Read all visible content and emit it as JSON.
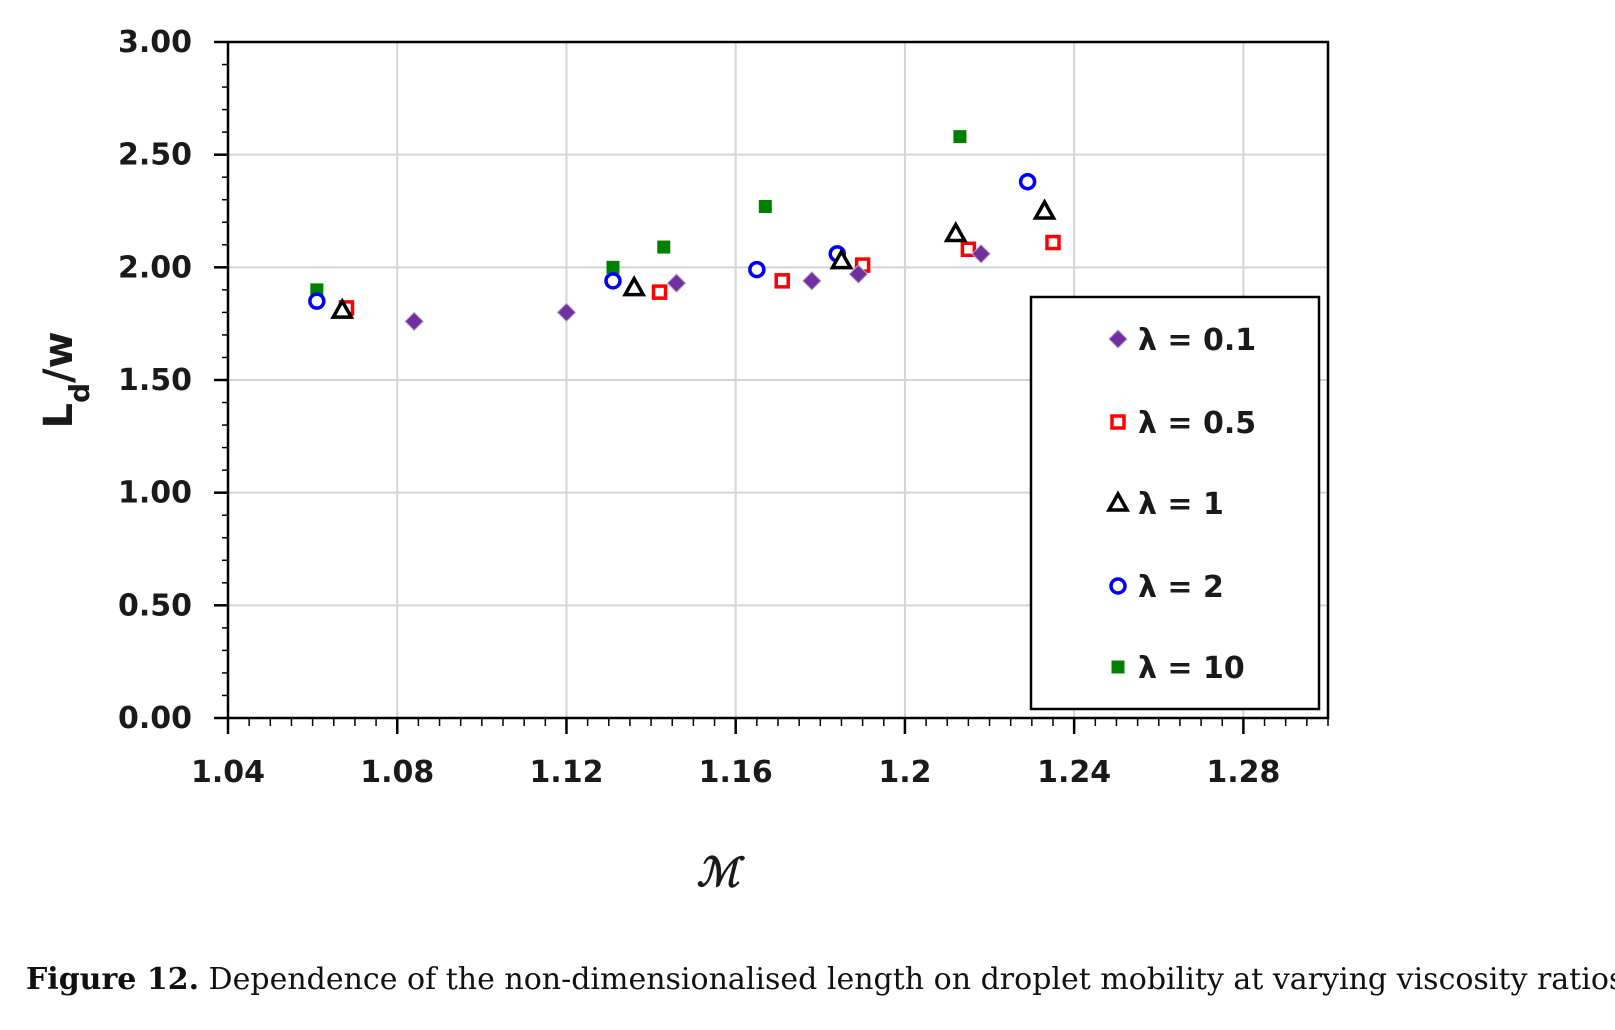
{
  "chart_data": {
    "type": "scatter",
    "xlabel": "ℳ",
    "ylabel": "Ld/w",
    "ylabel_main": "L",
    "ylabel_sub": "d",
    "ylabel_tail": "/w",
    "xlim": [
      1.04,
      1.3
    ],
    "ylim": [
      0.0,
      3.0
    ],
    "xticks": [
      1.04,
      1.08,
      1.12,
      1.16,
      1.2,
      1.24,
      1.28
    ],
    "xtick_labels": [
      "1.04",
      "1.08",
      "1.12",
      "1.16",
      "1.2",
      "1.24",
      "1.28"
    ],
    "yticks": [
      0.0,
      0.5,
      1.0,
      1.5,
      2.0,
      2.5,
      3.0
    ],
    "ytick_labels": [
      "0.00",
      "0.50",
      "1.00",
      "1.50",
      "2.00",
      "2.50",
      "3.00"
    ],
    "x_minor_step": 0.005,
    "grid": true,
    "legend_position": "right",
    "series": [
      {
        "name": "λ = 0.1",
        "marker": "diamond",
        "color": "#7030a0",
        "x": [
          1.084,
          1.12,
          1.146,
          1.178,
          1.189,
          1.218
        ],
        "y": [
          1.76,
          1.8,
          1.93,
          1.94,
          1.97,
          2.06
        ]
      },
      {
        "name": "λ = 0.5",
        "marker": "square-open",
        "color": "#ff0000",
        "x": [
          1.068,
          1.142,
          1.171,
          1.19,
          1.215,
          1.235
        ],
        "y": [
          1.82,
          1.89,
          1.94,
          2.01,
          2.08,
          2.11
        ]
      },
      {
        "name": "λ = 1",
        "marker": "triangle-open",
        "color": "#000000",
        "x": [
          1.067,
          1.136,
          1.185,
          1.212,
          1.233
        ],
        "y": [
          1.81,
          1.91,
          2.03,
          2.15,
          2.25
        ]
      },
      {
        "name": "λ = 2",
        "marker": "circle-open",
        "color": "#0000ff",
        "x": [
          1.061,
          1.131,
          1.165,
          1.184,
          1.229
        ],
        "y": [
          1.85,
          1.94,
          1.99,
          2.06,
          2.38
        ]
      },
      {
        "name": "λ = 10",
        "marker": "square",
        "color": "#008000",
        "x": [
          1.061,
          1.131,
          1.143,
          1.167,
          1.213
        ],
        "y": [
          1.9,
          2.0,
          2.09,
          2.27,
          2.58
        ]
      }
    ]
  },
  "caption": {
    "label": "Figure 12.",
    "text": " Dependence of the non-dimensionalised length on droplet mobility at varying viscosity ratios."
  }
}
